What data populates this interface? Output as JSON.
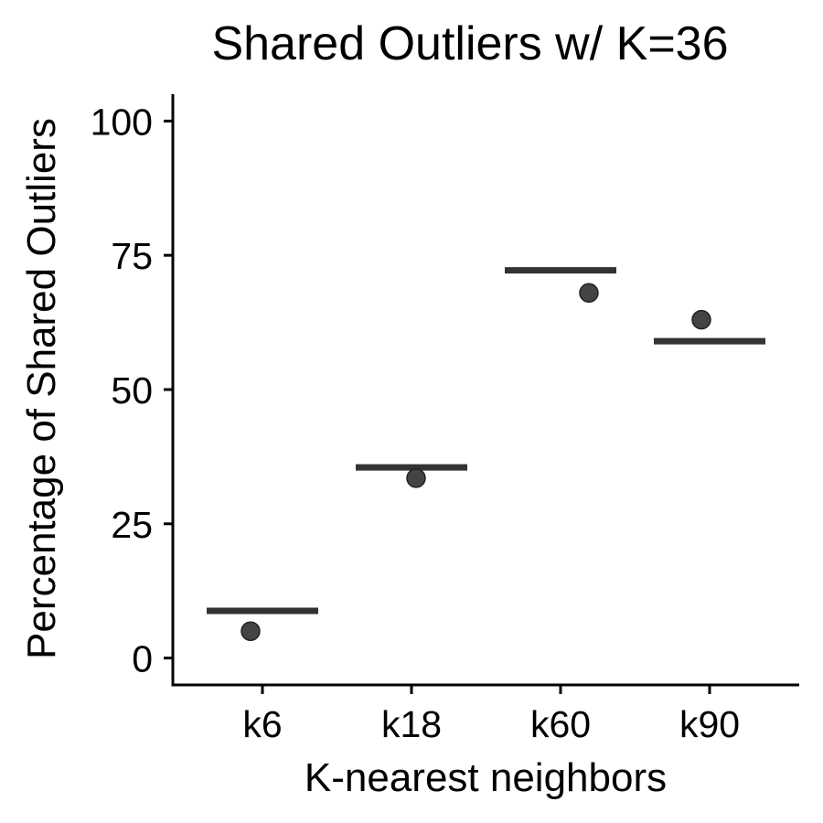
{
  "chart_data": {
    "type": "scatter",
    "title": "Shared Outliers w/ K=36",
    "xlabel": "K-nearest neighbors",
    "ylabel": "Percentage of Shared Outliers",
    "categories": [
      "k6",
      "k18",
      "k60",
      "k90"
    ],
    "ylim": [
      -5,
      105
    ],
    "yticks": [
      0,
      25,
      50,
      75,
      100
    ],
    "grid": false,
    "legend": "none",
    "series": [
      {
        "values": [
          5,
          33.5,
          68,
          63
        ],
        "color": "#444444"
      },
      {
        "values": [
          8.8,
          35.5,
          72.2,
          59
        ],
        "color": "#333333"
      }
    ]
  }
}
